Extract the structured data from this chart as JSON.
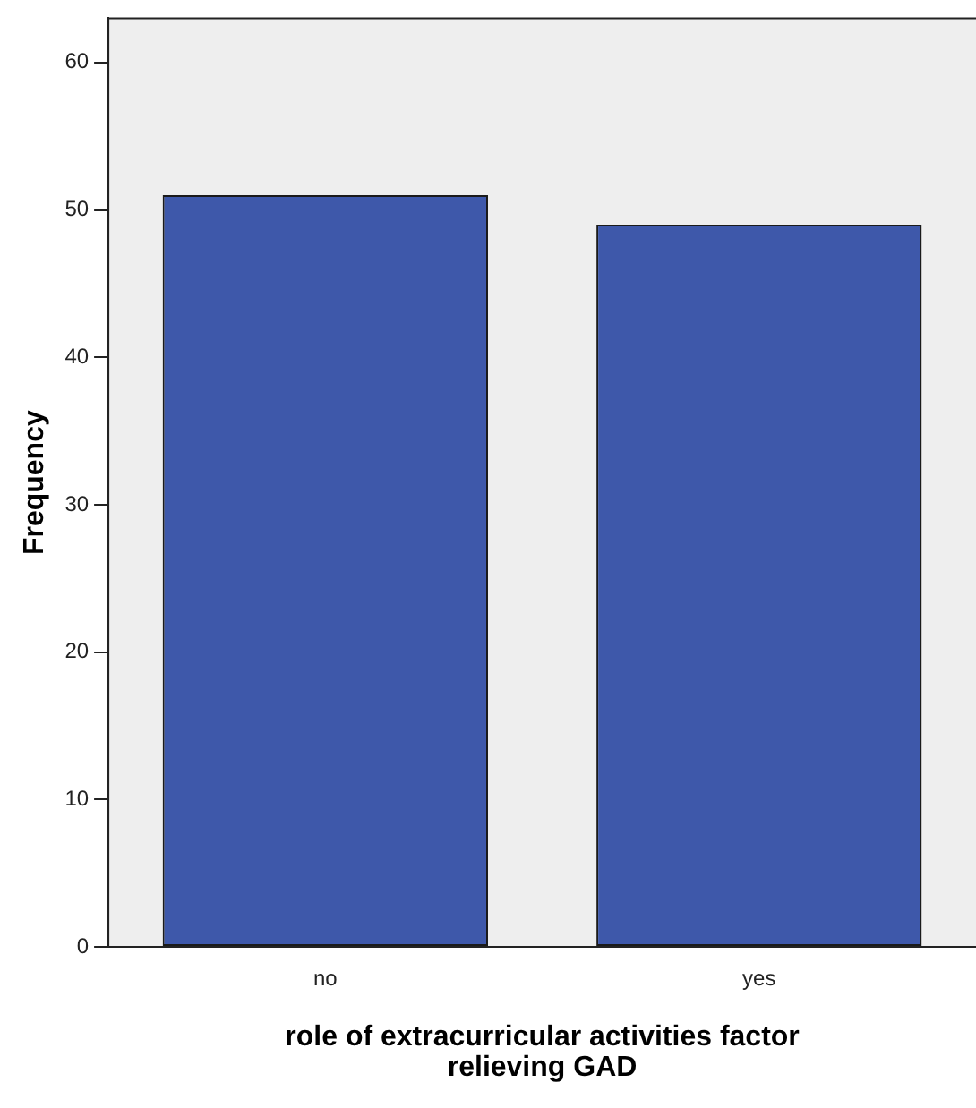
{
  "chart_data": {
    "type": "bar",
    "categories": [
      "no",
      "yes"
    ],
    "values": [
      51,
      49
    ],
    "color": "#3e58aa",
    "xlabel": "role of extracurricular activities factor relieving GAD",
    "ylabel": "Frequency",
    "ylim": [
      0,
      63
    ],
    "yticks": [
      0,
      10,
      20,
      30,
      40,
      50,
      60
    ],
    "grid": false,
    "legend": false
  }
}
